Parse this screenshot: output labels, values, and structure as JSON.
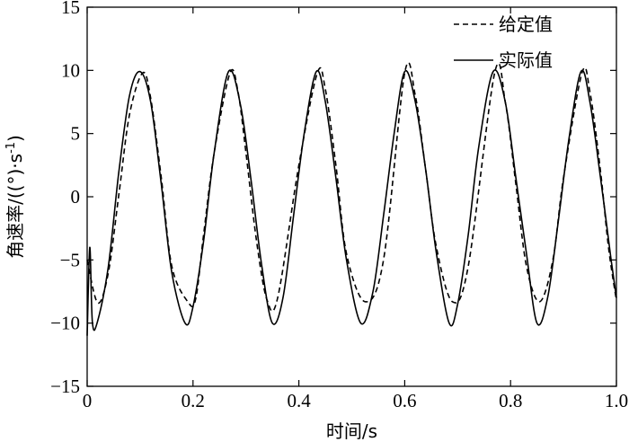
{
  "chart_data": {
    "type": "line",
    "title": "",
    "xlabel": "时间/s",
    "ylabel": "角速率/((°)·s",
    "ylabel_sup": "-1",
    "ylabel_close": ")",
    "xlim": [
      0,
      1.0
    ],
    "ylim": [
      -15,
      15
    ],
    "x_ticks": [
      0,
      0.2,
      0.4,
      0.6,
      0.8,
      1.0
    ],
    "x_tick_labels": [
      "0",
      "0.2",
      "0.4",
      "0.6",
      "0.8",
      "1.0"
    ],
    "y_ticks": [
      -15,
      -10,
      -5,
      0,
      5,
      10,
      15
    ],
    "y_tick_labels": [
      "−15",
      "−10",
      "−5",
      "0",
      "5",
      "10",
      "15"
    ],
    "grid": false,
    "legend_position": "top-right",
    "series": [
      {
        "name": "给定值",
        "style": "dashed",
        "color": "#000000",
        "x": [
          0.0,
          0.02,
          0.04,
          0.06,
          0.08,
          0.105,
          0.12,
          0.14,
          0.16,
          0.19,
          0.205,
          0.22,
          0.24,
          0.27,
          0.285,
          0.3,
          0.32,
          0.34,
          0.36,
          0.4,
          0.435,
          0.45,
          0.47,
          0.49,
          0.525,
          0.56,
          0.6,
          0.62,
          0.64,
          0.66,
          0.69,
          0.72,
          0.77,
          0.79,
          0.81,
          0.83,
          0.855,
          0.88,
          0.9,
          0.935,
          0.95,
          0.97,
          0.985,
          1.0
        ],
        "y": [
          -5.0,
          -8.4,
          -6.0,
          0.2,
          6.5,
          9.8,
          7.8,
          1.5,
          -5.5,
          -8.3,
          -8.1,
          -3.0,
          3.5,
          9.8,
          8.3,
          3.5,
          -3.5,
          -8.2,
          -8.0,
          2.5,
          9.8,
          8.5,
          2.5,
          -4.5,
          -8.3,
          -5.0,
          9.8,
          8.0,
          2.0,
          -4.0,
          -8.3,
          -5.5,
          9.8,
          7.5,
          1.0,
          -5.5,
          -8.3,
          -5.0,
          1.5,
          9.8,
          8.3,
          2.0,
          -4.0,
          -8.2
        ]
      },
      {
        "name": "实际值",
        "style": "solid",
        "color": "#000000",
        "x": [
          0.0,
          0.005,
          0.01,
          0.02,
          0.04,
          0.06,
          0.08,
          0.1,
          0.12,
          0.14,
          0.16,
          0.185,
          0.2,
          0.22,
          0.24,
          0.267,
          0.29,
          0.31,
          0.33,
          0.35,
          0.37,
          0.39,
          0.41,
          0.433,
          0.45,
          0.47,
          0.49,
          0.517,
          0.54,
          0.56,
          0.58,
          0.6,
          0.62,
          0.64,
          0.66,
          0.684,
          0.7,
          0.72,
          0.74,
          0.767,
          0.79,
          0.81,
          0.83,
          0.85,
          0.87,
          0.89,
          0.91,
          0.933,
          0.95,
          0.97,
          0.99,
          1.0
        ],
        "y": [
          -11.0,
          -4.0,
          -10.0,
          -9.8,
          -5.5,
          2.0,
          8.0,
          9.9,
          7.5,
          1.0,
          -6.0,
          -10.0,
          -8.7,
          -3.5,
          3.5,
          9.9,
          7.2,
          1.2,
          -5.5,
          -10.0,
          -8.0,
          -1.5,
          5.0,
          9.9,
          7.5,
          1.5,
          -5.0,
          -10.0,
          -7.5,
          -1.5,
          5.0,
          9.9,
          7.5,
          2.0,
          -4.5,
          -10.0,
          -8.5,
          -3.0,
          4.0,
          9.9,
          7.5,
          1.5,
          -4.5,
          -10.0,
          -8.0,
          -2.0,
          4.5,
          9.9,
          7.5,
          1.5,
          -5.0,
          -8.0
        ]
      }
    ]
  }
}
